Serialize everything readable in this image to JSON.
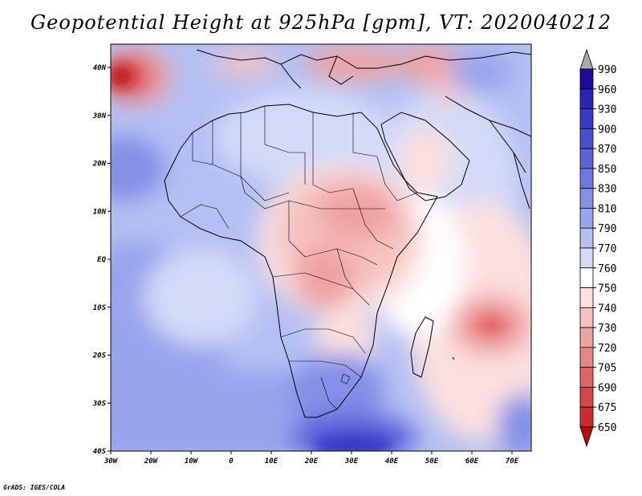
{
  "title": "Geopotential Height at 925hPa [gpm], VT: 2020040212",
  "credit": "GrADS: IGES/COLA",
  "map": {
    "variable": "Geopotential Height",
    "level": "925hPa",
    "units": "gpm",
    "valid_time": "2020040212",
    "lon_labels": [
      "30W",
      "20W",
      "10W",
      "0",
      "10E",
      "20E",
      "30E",
      "40E",
      "50E",
      "60E",
      "70E"
    ],
    "lat_labels": [
      "40N",
      "30N",
      "20N",
      "10N",
      "EQ",
      "10S",
      "20S",
      "30S",
      "40S"
    ]
  },
  "colorbar": {
    "levels": [
      "990",
      "960",
      "930",
      "900",
      "870",
      "850",
      "830",
      "810",
      "790",
      "770",
      "760",
      "750",
      "740",
      "730",
      "720",
      "705",
      "690",
      "675",
      "650"
    ],
    "colors": [
      "#1e0a9e",
      "#2b23b8",
      "#3a3bc4",
      "#4a4fd0",
      "#5b63d9",
      "#6d78e0",
      "#8290e6",
      "#98a5ec",
      "#b4c0f2",
      "#d3dbf8",
      "#ffffff",
      "#fbe0de",
      "#f5c2c0",
      "#eea3a2",
      "#e68584",
      "#df6564",
      "#d74646",
      "#ce2a2a",
      "#c01616",
      "#b80a0a"
    ],
    "over_color": "#a9a9a9"
  }
}
